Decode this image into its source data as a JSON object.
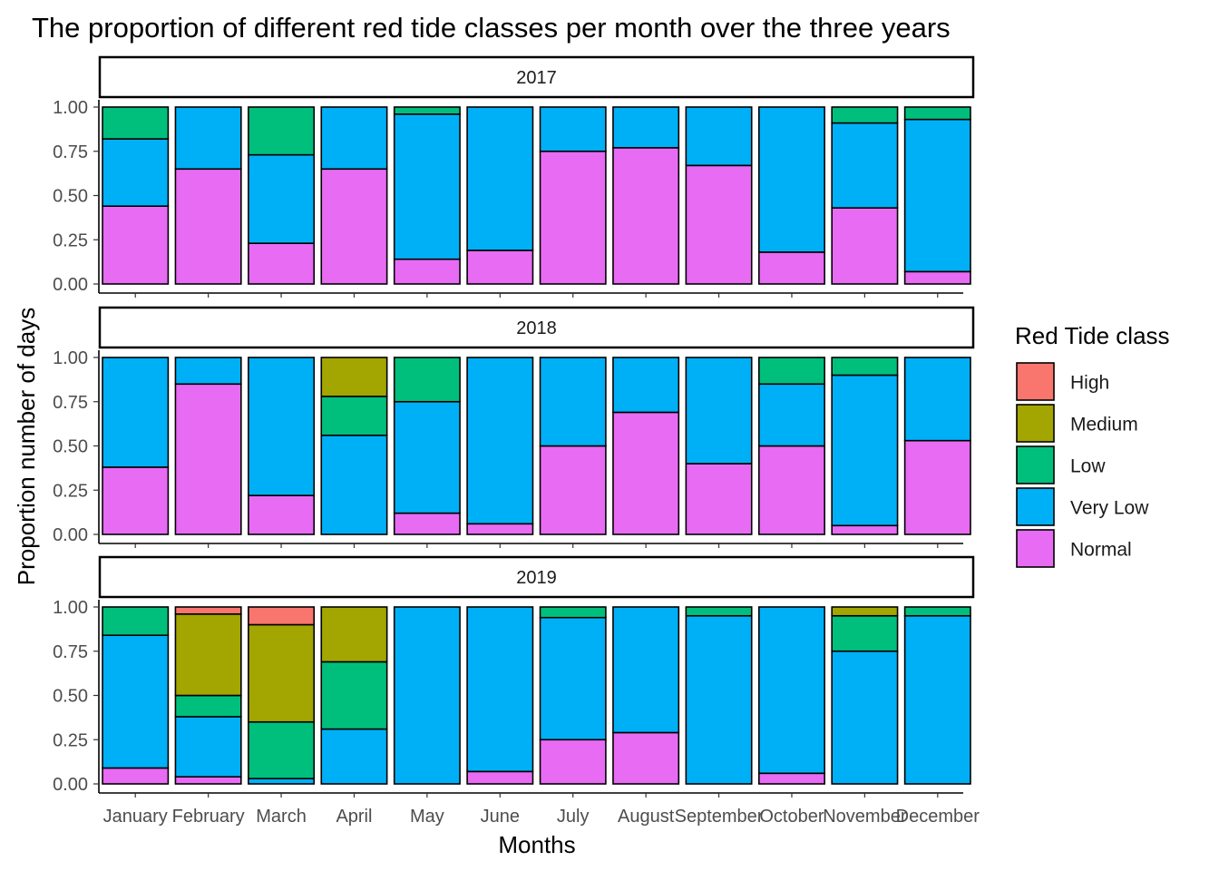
{
  "chart_data": {
    "type": "bar",
    "stacked": true,
    "title": "The proportion of different red tide classes per month over the three years",
    "xlabel": "Months",
    "ylabel": "Proportion number of days",
    "ylim": [
      0,
      1
    ],
    "yticks": [
      "0.00",
      "0.25",
      "0.50",
      "0.75",
      "1.00"
    ],
    "grid": false,
    "legend": {
      "title": "Red Tide class",
      "position": "right",
      "entries": [
        "High",
        "Medium",
        "Low",
        "Very Low",
        "Normal"
      ]
    },
    "colors": {
      "High": "#F8766D",
      "Medium": "#A3A500",
      "Low": "#00BF7D",
      "Very Low": "#00B0F6",
      "Normal": "#E76BF3"
    },
    "categories": [
      "January",
      "February",
      "March",
      "April",
      "May",
      "June",
      "July",
      "August",
      "September",
      "October",
      "November",
      "December"
    ],
    "facets": [
      {
        "panel": "2017",
        "series": [
          {
            "name": "Normal",
            "values": [
              0.44,
              0.65,
              0.23,
              0.65,
              0.14,
              0.19,
              0.75,
              0.77,
              0.67,
              0.18,
              0.43,
              0.07
            ]
          },
          {
            "name": "Very Low",
            "values": [
              0.38,
              0.35,
              0.5,
              0.35,
              0.82,
              0.81,
              0.25,
              0.23,
              0.33,
              0.82,
              0.48,
              0.86
            ]
          },
          {
            "name": "Low",
            "values": [
              0.18,
              0,
              0.27,
              0,
              0.04,
              0,
              0,
              0,
              0,
              0,
              0.09,
              0.07
            ]
          },
          {
            "name": "Medium",
            "values": [
              0,
              0,
              0,
              0,
              0,
              0,
              0,
              0,
              0,
              0,
              0,
              0
            ]
          },
          {
            "name": "High",
            "values": [
              0,
              0,
              0,
              0,
              0,
              0,
              0,
              0,
              0,
              0,
              0,
              0
            ]
          }
        ]
      },
      {
        "panel": "2018",
        "series": [
          {
            "name": "Normal",
            "values": [
              0.38,
              0.85,
              0.22,
              0,
              0.12,
              0.06,
              0.5,
              0.69,
              0.4,
              0.5,
              0.05,
              0.53
            ]
          },
          {
            "name": "Very Low",
            "values": [
              0.62,
              0.15,
              0.78,
              0.56,
              0.63,
              0.94,
              0.5,
              0.31,
              0.6,
              0.35,
              0.85,
              0.47
            ]
          },
          {
            "name": "Low",
            "values": [
              0,
              0,
              0,
              0.22,
              0.25,
              0,
              0,
              0,
              0,
              0.15,
              0.1,
              0
            ]
          },
          {
            "name": "Medium",
            "values": [
              0,
              0,
              0,
              0.22,
              0,
              0,
              0,
              0,
              0,
              0,
              0,
              0
            ]
          },
          {
            "name": "High",
            "values": [
              0,
              0,
              0,
              0,
              0,
              0,
              0,
              0,
              0,
              0,
              0,
              0
            ]
          }
        ]
      },
      {
        "panel": "2019",
        "series": [
          {
            "name": "Normal",
            "values": [
              0.09,
              0.04,
              0,
              0,
              0,
              0.07,
              0.25,
              0.29,
              0,
              0.06,
              0,
              0
            ]
          },
          {
            "name": "Very Low",
            "values": [
              0.75,
              0.34,
              0.03,
              0.31,
              1.0,
              0.93,
              0.69,
              0.71,
              0.95,
              0.94,
              0.75,
              0.95
            ]
          },
          {
            "name": "Low",
            "values": [
              0.16,
              0.12,
              0.32,
              0.38,
              0,
              0,
              0.06,
              0,
              0.05,
              0,
              0.2,
              0.05
            ]
          },
          {
            "name": "Medium",
            "values": [
              0,
              0.46,
              0.55,
              0.31,
              0,
              0,
              0,
              0,
              0,
              0,
              0.05,
              0
            ]
          },
          {
            "name": "High",
            "values": [
              0,
              0.04,
              0.1,
              0,
              0,
              0,
              0,
              0,
              0,
              0,
              0,
              0
            ]
          }
        ]
      }
    ]
  }
}
